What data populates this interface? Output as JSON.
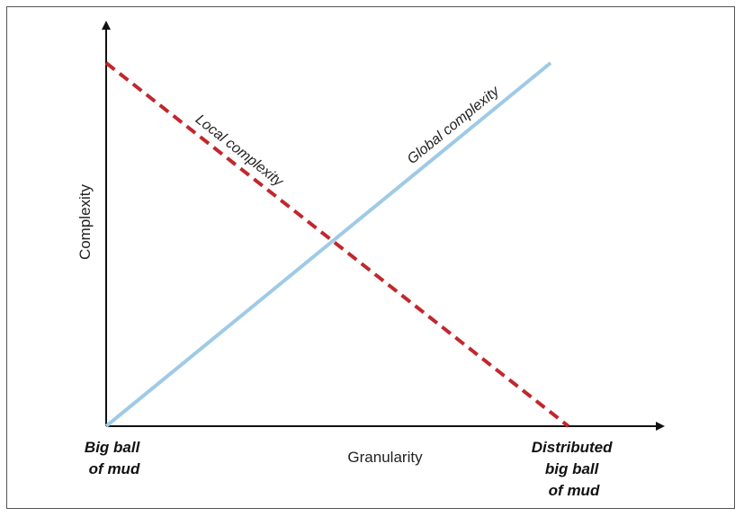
{
  "chart_data": {
    "type": "line",
    "xlabel": "Granularity",
    "ylabel": "Complexity",
    "x_start_label": [
      "Big ball",
      "of mud"
    ],
    "x_end_label": [
      "Distributed",
      "big ball",
      "of mud"
    ],
    "xlim": [
      0,
      1
    ],
    "ylim": [
      0,
      1
    ],
    "series": [
      {
        "name": "Local complexity",
        "style": "dashed",
        "color": "#c1272d",
        "x": [
          0,
          1.04
        ],
        "y": [
          1.0,
          0
        ]
      },
      {
        "name": "Global complexity",
        "style": "solid",
        "color": "#9ecae7",
        "x": [
          0,
          1.0
        ],
        "y": [
          0,
          1.0
        ]
      }
    ]
  }
}
